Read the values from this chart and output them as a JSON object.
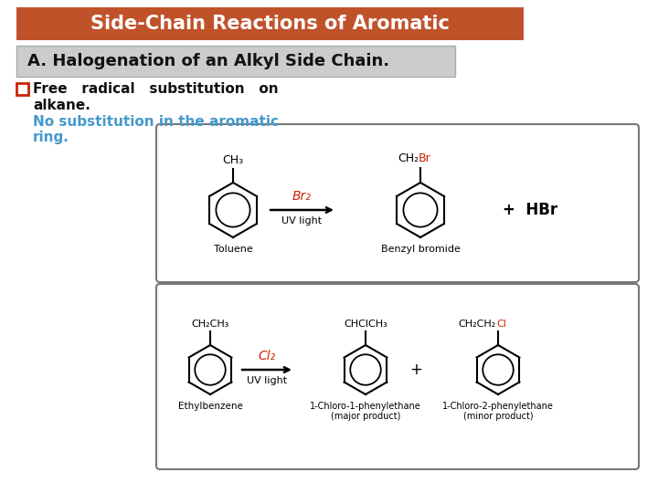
{
  "title": "Side-Chain Reactions of Aromatic",
  "subtitle": "A. Halogenation of an Alkyl Side Chain.",
  "title_bg": "#C0522A",
  "subtitle_bg": "#CCCCCC",
  "title_color": "#FFFFFF",
  "subtitle_color": "#111111",
  "bg_color": "#FFFFFF",
  "border_color": "#AAAAAA",
  "bullet_color": "#CC2200",
  "text_line1a": "Free   radical  ",
  "text_line1b": "substitution   on",
  "text_line2": "alkane.",
  "text_line3": "No substitution in the aromatic",
  "text_line4": "ring.",
  "text_color_bold": "#111111",
  "text_color_blue": "#4499CC",
  "rxn_border": "#777777",
  "red_color": "#CC2200",
  "black": "#000000"
}
